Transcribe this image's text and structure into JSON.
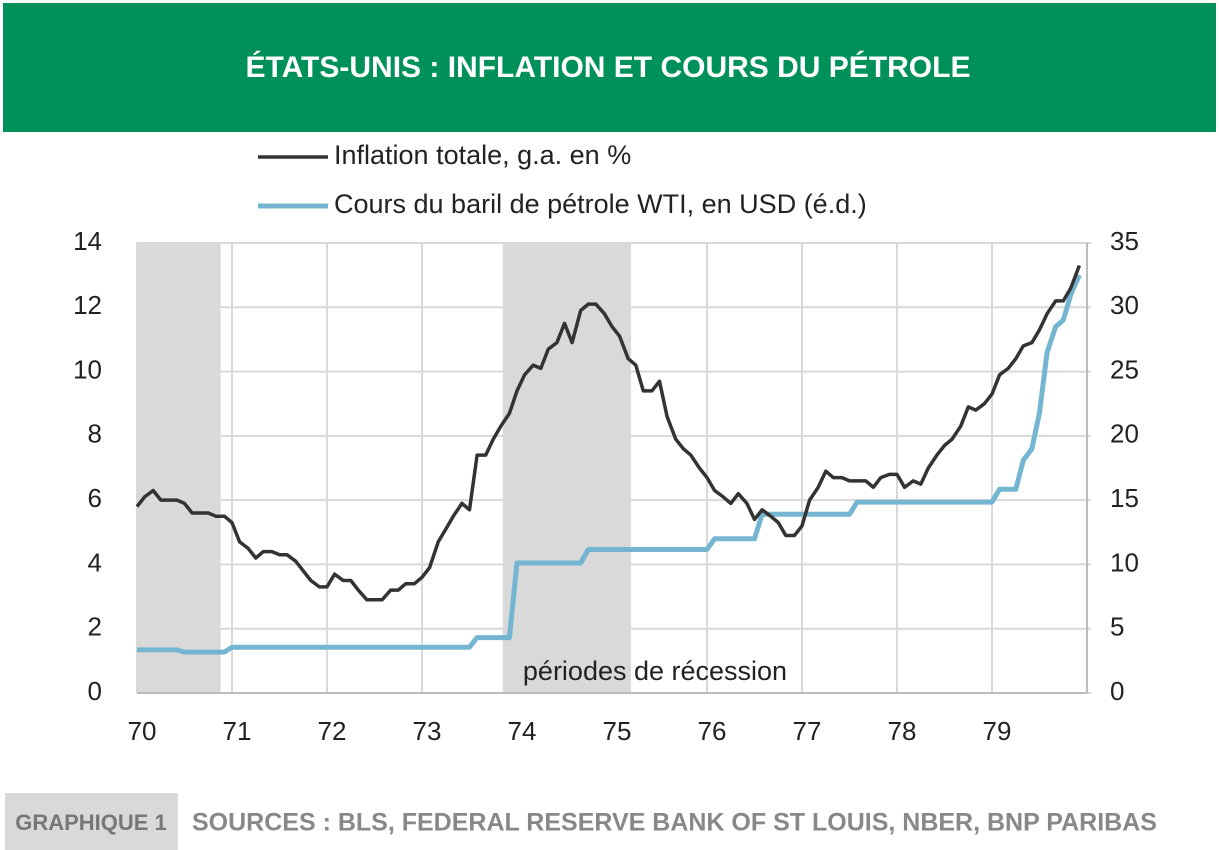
{
  "chart_data": {
    "type": "line",
    "title": "ÉTATS-UNIS : INFLATION ET COURS DU PÉTROLE",
    "figure_label": "GRAPHIQUE 1",
    "source": "SOURCES : BLS, FEDERAL RESERVE BANK OF ST LOUIS, NBER, BNP PARIBAS",
    "annotation": "périodes de récession",
    "shaded_periods": [
      [
        70,
        70.88
      ],
      [
        73.85,
        75.2
      ]
    ],
    "shade_color": "#d9d9d9",
    "xlim": [
      70,
      80
    ],
    "xticks": [
      70,
      71,
      72,
      73,
      74,
      75,
      76,
      77,
      78,
      79
    ],
    "ylim": [
      0,
      14
    ],
    "yticks": [
      0,
      2,
      4,
      6,
      8,
      10,
      12,
      14
    ],
    "y2lim": [
      0,
      35
    ],
    "y2ticks": [
      0,
      5,
      10,
      15,
      20,
      25,
      30,
      35
    ],
    "grid": true,
    "legend": "top",
    "x": [
      70,
      70.08,
      70.17,
      70.25,
      70.33,
      70.42,
      70.5,
      70.58,
      70.67,
      70.75,
      70.83,
      70.92,
      71,
      71.08,
      71.17,
      71.25,
      71.33,
      71.42,
      71.5,
      71.58,
      71.67,
      71.75,
      71.83,
      71.92,
      72,
      72.08,
      72.17,
      72.25,
      72.33,
      72.42,
      72.5,
      72.58,
      72.67,
      72.75,
      72.83,
      72.92,
      73,
      73.08,
      73.17,
      73.25,
      73.33,
      73.42,
      73.5,
      73.58,
      73.67,
      73.75,
      73.83,
      73.92,
      74,
      74.08,
      74.17,
      74.25,
      74.33,
      74.42,
      74.5,
      74.58,
      74.67,
      74.75,
      74.83,
      74.92,
      75,
      75.08,
      75.17,
      75.25,
      75.33,
      75.42,
      75.5,
      75.58,
      75.67,
      75.75,
      75.83,
      75.92,
      76,
      76.08,
      76.17,
      76.25,
      76.33,
      76.42,
      76.5,
      76.58,
      76.67,
      76.75,
      76.83,
      76.92,
      77,
      77.08,
      77.17,
      77.25,
      77.33,
      77.42,
      77.5,
      77.58,
      77.67,
      77.75,
      77.83,
      77.92,
      78,
      78.08,
      78.17,
      78.25,
      78.33,
      78.42,
      78.5,
      78.58,
      78.67,
      78.75,
      78.83,
      78.92,
      79,
      79.08,
      79.17,
      79.25,
      79.33,
      79.42,
      79.5,
      79.58,
      79.67,
      79.75,
      79.83,
      79.92
    ],
    "series": [
      {
        "name": "Inflation totale, g.a. en %",
        "color": "#333333",
        "axis": "y",
        "values": [
          5.8,
          6.1,
          6.3,
          6.0,
          6.0,
          6.0,
          5.9,
          5.6,
          5.6,
          5.6,
          5.5,
          5.5,
          5.3,
          4.7,
          4.5,
          4.2,
          4.4,
          4.4,
          4.3,
          4.3,
          4.1,
          3.8,
          3.5,
          3.3,
          3.3,
          3.7,
          3.5,
          3.5,
          3.2,
          2.9,
          2.9,
          2.9,
          3.2,
          3.2,
          3.4,
          3.4,
          3.6,
          3.9,
          4.7,
          5.1,
          5.5,
          5.9,
          5.7,
          7.4,
          7.4,
          7.9,
          8.3,
          8.7,
          9.4,
          9.9,
          10.2,
          10.1,
          10.7,
          10.9,
          11.5,
          10.9,
          11.9,
          12.1,
          12.1,
          11.8,
          11.4,
          11.1,
          10.4,
          10.2,
          9.4,
          9.4,
          9.7,
          8.6,
          7.9,
          7.6,
          7.4,
          7.0,
          6.7,
          6.3,
          6.1,
          5.9,
          6.2,
          5.9,
          5.4,
          5.7,
          5.5,
          5.3,
          4.9,
          4.9,
          5.2,
          6.0,
          6.4,
          6.9,
          6.7,
          6.7,
          6.6,
          6.6,
          6.6,
          6.4,
          6.7,
          6.8,
          6.8,
          6.4,
          6.6,
          6.5,
          7.0,
          7.4,
          7.7,
          7.9,
          8.3,
          8.9,
          8.8,
          9.0,
          9.3,
          9.9,
          10.1,
          10.4,
          10.8,
          10.9,
          11.3,
          11.8,
          12.2,
          12.2,
          12.6,
          13.3
        ]
      },
      {
        "name": "Cours du baril de pétrole WTI, en USD (é.d.)",
        "color": "#74b6d2",
        "axis": "y2",
        "values": [
          3.35,
          3.35,
          3.35,
          3.35,
          3.35,
          3.35,
          3.18,
          3.18,
          3.18,
          3.18,
          3.18,
          3.18,
          3.56,
          3.56,
          3.56,
          3.56,
          3.56,
          3.56,
          3.56,
          3.56,
          3.56,
          3.56,
          3.56,
          3.56,
          3.56,
          3.56,
          3.56,
          3.56,
          3.56,
          3.56,
          3.56,
          3.56,
          3.56,
          3.56,
          3.56,
          3.56,
          3.56,
          3.56,
          3.56,
          3.56,
          3.56,
          3.56,
          3.56,
          4.31,
          4.31,
          4.31,
          4.31,
          4.31,
          10.11,
          10.11,
          10.11,
          10.11,
          10.11,
          10.11,
          10.11,
          10.11,
          10.11,
          11.16,
          11.16,
          11.16,
          11.16,
          11.16,
          11.16,
          11.16,
          11.16,
          11.16,
          11.16,
          11.16,
          11.16,
          11.16,
          11.16,
          11.16,
          11.16,
          12.0,
          12.0,
          12.0,
          12.0,
          12.0,
          12.0,
          13.9,
          13.9,
          13.9,
          13.9,
          13.9,
          13.9,
          13.9,
          13.9,
          13.9,
          13.9,
          13.9,
          13.9,
          14.85,
          14.85,
          14.85,
          14.85,
          14.85,
          14.85,
          14.85,
          14.85,
          14.85,
          14.85,
          14.85,
          14.85,
          14.85,
          14.85,
          14.85,
          14.85,
          14.85,
          14.85,
          15.85,
          15.85,
          15.85,
          18.1,
          19.0,
          21.8,
          26.5,
          28.5,
          29.0,
          31.0,
          32.5
        ]
      }
    ]
  }
}
